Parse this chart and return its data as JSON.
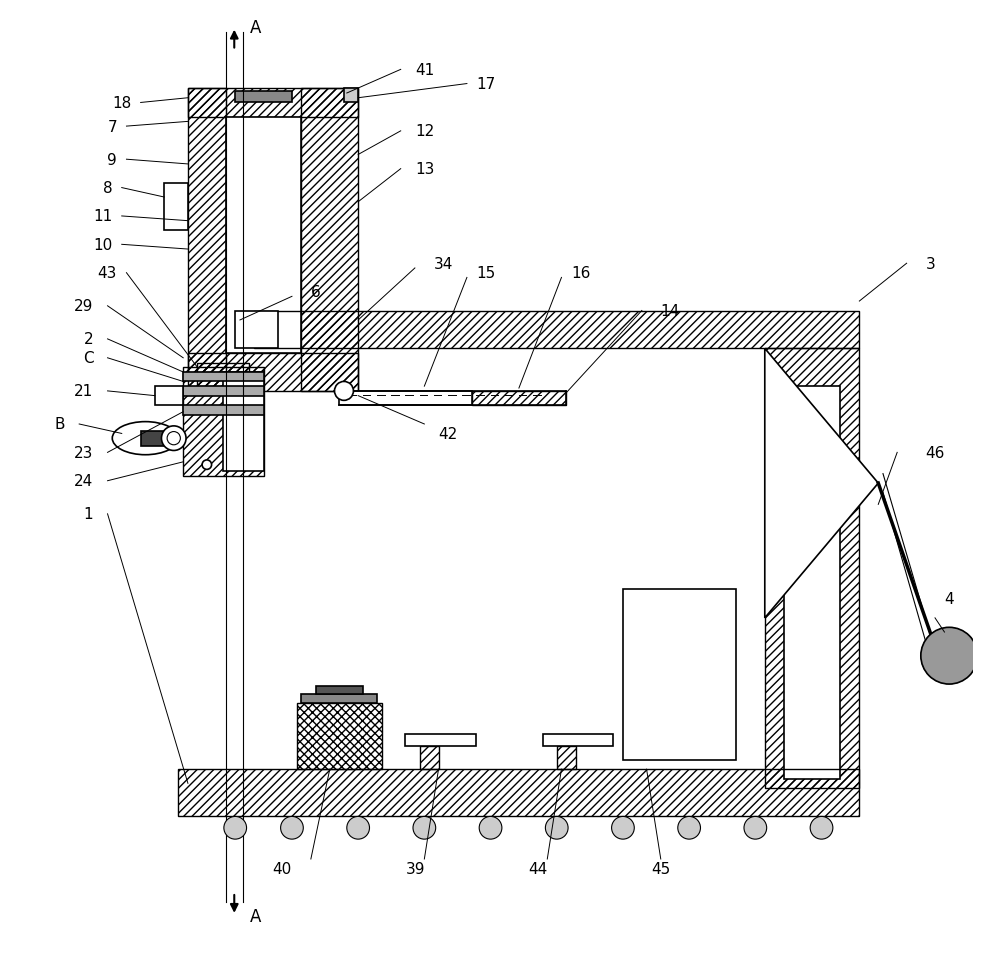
{
  "figsize": [
    10.0,
    9.54
  ],
  "dpi": 100,
  "bg_color": "#ffffff",
  "labels": {
    "A_top": "A",
    "A_bottom": "A",
    "B": "B",
    "C": "C",
    "n1": "1",
    "n2": "2",
    "n3": "3",
    "n4": "4",
    "n6": "6",
    "n7": "7",
    "n8": "8",
    "n9": "9",
    "n10": "10",
    "n11": "11",
    "n12": "12",
    "n13": "13",
    "n14": "14",
    "n15": "15",
    "n16": "16",
    "n17": "17",
    "n18": "18",
    "n21": "21",
    "n23": "23",
    "n24": "24",
    "n29": "29",
    "n34": "34",
    "n39": "39",
    "n40": "40",
    "n41": "41",
    "n42": "42",
    "n43": "43",
    "n44": "44",
    "n45": "45",
    "n46": "46"
  },
  "lw": 1.2,
  "lw_thin": 0.8,
  "lw_thick": 1.8,
  "label_fs": 11,
  "arrow_fs": 12
}
